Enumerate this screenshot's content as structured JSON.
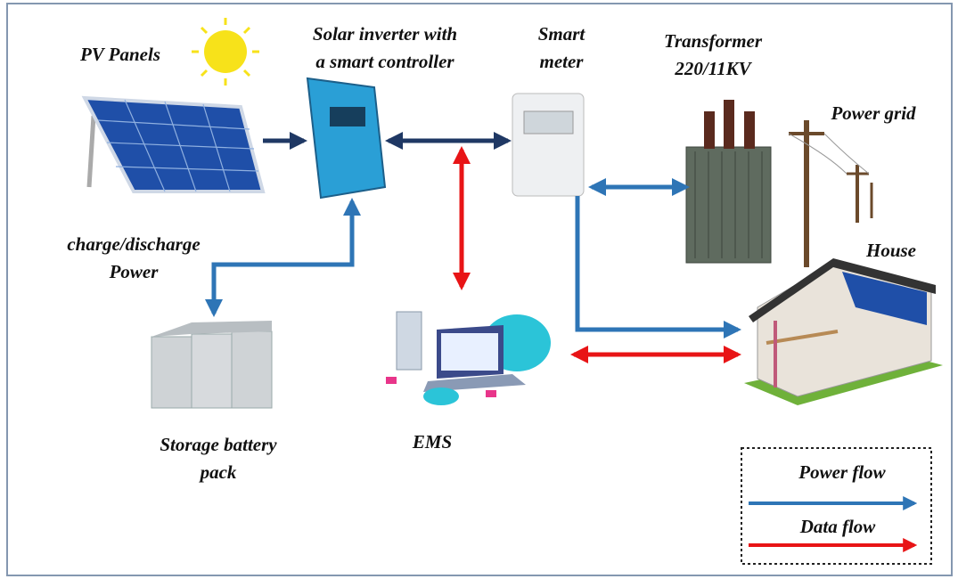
{
  "nodes": [
    {
      "label": [
        "PV Panels"
      ]
    },
    {
      "label": [
        "Solar inverter with",
        "a smart controller"
      ]
    },
    {
      "label": [
        "Smart",
        "meter"
      ]
    },
    {
      "label": [
        "Transformer",
        "220/11KV"
      ]
    },
    {
      "label": [
        "Power grid"
      ]
    },
    {
      "label": [
        "House"
      ]
    },
    {
      "label": [
        "charge/discharge",
        "Power"
      ]
    },
    {
      "label": [
        "Storage battery",
        "pack"
      ]
    },
    {
      "label": [
        "EMS"
      ]
    }
  ],
  "legend": {
    "items": [
      {
        "label": "Power flow"
      },
      {
        "label": "Data flow"
      }
    ]
  }
}
